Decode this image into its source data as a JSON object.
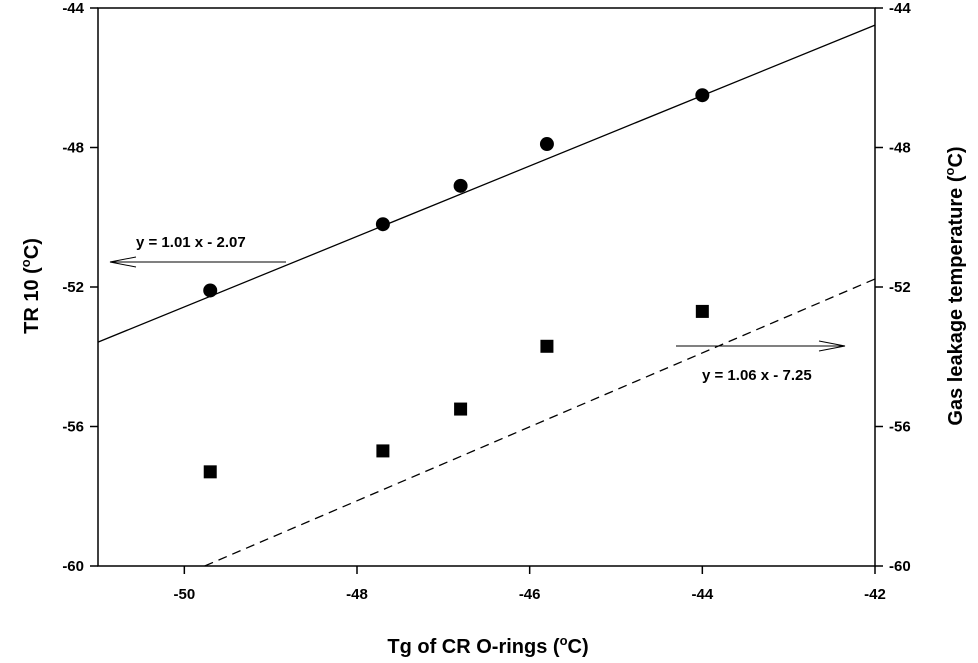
{
  "chart_data": {
    "type": "scatter",
    "title": "",
    "xlabel": {
      "main": "Tg of CR O-rings (",
      "sup": "o",
      "unit": "C)"
    },
    "ylabel_left": {
      "main": "TR 10 (",
      "sup": "o",
      "unit": "C)"
    },
    "ylabel_right": {
      "main": "Gas leakage temperature (",
      "sup": "o",
      "unit": "C)"
    },
    "xlim": [
      -51,
      -42
    ],
    "ylim": [
      -60,
      -44
    ],
    "xticks": [
      -50,
      -48,
      -46,
      -44,
      -42
    ],
    "yticks_left": [
      -60,
      -56,
      -52,
      -48,
      -44
    ],
    "yticks_right": [
      -60,
      -56,
      -52,
      -48,
      -44
    ],
    "grid": false,
    "series": [
      {
        "marker": "circle",
        "axis": "left",
        "x": [
          -49.7,
          -47.7,
          -46.8,
          -45.8,
          -44.0
        ],
        "y": [
          -52.1,
          -50.2,
          -49.1,
          -47.9,
          -46.5
        ],
        "fit": {
          "slope": 1.01,
          "intercept": -2.07,
          "style": "solid",
          "color": "#000000"
        },
        "equation": "y = 1.01 x - 2.07",
        "arrow_direction": "left"
      },
      {
        "marker": "square",
        "axis": "right",
        "x": [
          -49.7,
          -47.7,
          -46.8,
          -45.8,
          -44.0
        ],
        "y": [
          -57.3,
          -56.7,
          -55.5,
          -53.7,
          -52.7
        ],
        "fit": {
          "slope": 1.06,
          "intercept": -7.25,
          "style": "dashed",
          "color": "#000000"
        },
        "equation": "y = 1.06 x - 7.25",
        "arrow_direction": "right"
      }
    ]
  }
}
